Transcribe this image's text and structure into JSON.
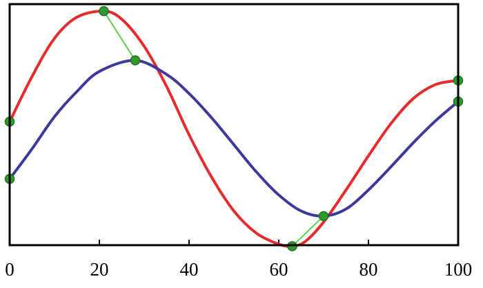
{
  "chart_data": {
    "type": "line",
    "title": "",
    "xlabel": "",
    "ylabel": "",
    "xlim": [
      0,
      100
    ],
    "ylim": [
      -1.2,
      1.2
    ],
    "x_ticks": [
      0,
      20,
      40,
      60,
      80,
      100
    ],
    "x_tick_labels": [
      "0",
      "20",
      "40",
      "60",
      "80",
      "100"
    ],
    "y_ticks_shown": false,
    "grid": false,
    "legend": "none",
    "series": [
      {
        "color": "#e52b2b",
        "x": [
          0,
          5,
          10,
          15,
          21,
          25,
          30,
          35,
          40,
          45,
          50,
          55,
          60,
          63,
          66,
          70,
          75,
          80,
          85,
          90,
          95,
          100
        ],
        "y": [
          0.03,
          0.48,
          0.86,
          1.07,
          1.13,
          1.05,
          0.78,
          0.38,
          -0.1,
          -0.52,
          -0.86,
          -1.08,
          -1.19,
          -1.21,
          -1.16,
          -0.97,
          -0.65,
          -0.31,
          0.01,
          0.26,
          0.4,
          0.44
        ]
      },
      {
        "color": "#3b3a9c",
        "x": [
          0,
          5,
          10,
          15,
          20,
          28,
          35,
          40,
          45,
          50,
          55,
          60,
          65,
          70,
          75,
          80,
          85,
          90,
          95,
          100
        ],
        "y": [
          -0.54,
          -0.24,
          0.08,
          0.33,
          0.53,
          0.64,
          0.5,
          0.31,
          0.07,
          -0.2,
          -0.47,
          -0.7,
          -0.86,
          -0.91,
          -0.84,
          -0.65,
          -0.42,
          -0.18,
          0.04,
          0.23
        ]
      }
    ],
    "markers": [
      {
        "x": 0,
        "y": 0.03
      },
      {
        "x": 0,
        "y": -0.54
      },
      {
        "x": 21,
        "y": 1.13
      },
      {
        "x": 28,
        "y": 0.64
      },
      {
        "x": 63,
        "y": -1.21
      },
      {
        "x": 70,
        "y": -0.91
      },
      {
        "x": 100,
        "y": 0.44
      },
      {
        "x": 100,
        "y": 0.23
      }
    ],
    "connectors": [
      {
        "x1": 0,
        "y1": 0.03,
        "x2": 0,
        "y2": -0.54
      },
      {
        "x1": 21,
        "y1": 1.13,
        "x2": 28,
        "y2": 0.64
      },
      {
        "x1": 63,
        "y1": -1.21,
        "x2": 70,
        "y2": -0.91
      },
      {
        "x1": 100,
        "y1": 0.44,
        "x2": 100,
        "y2": 0.23
      }
    ],
    "marker_color": "#2f9a2f",
    "connector_color": "#5fcf4b",
    "frame_color": "#000000"
  }
}
